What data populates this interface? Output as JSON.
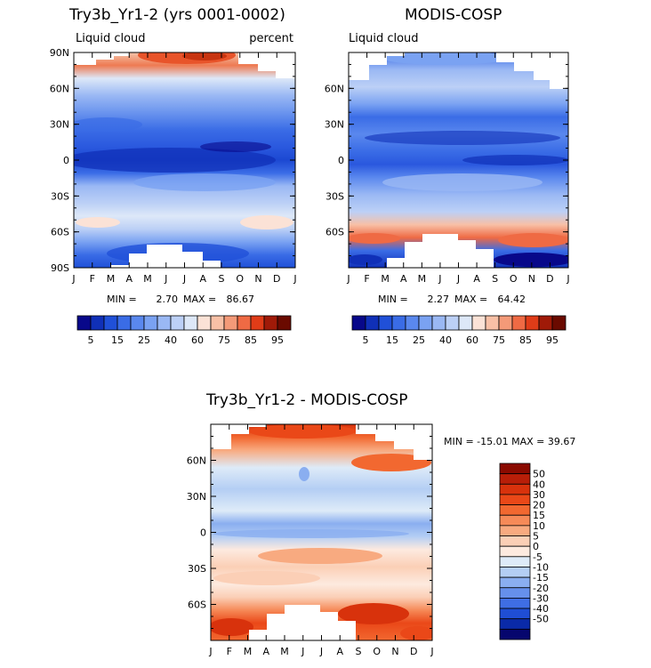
{
  "panel_a": {
    "title": "Try3b_Yr1-2 (yrs 0001-0002)",
    "left_subtitle": "Liquid cloud",
    "right_subtitle": "percent",
    "min_label": "MIN =",
    "min_value": "2.70",
    "max_label": "MAX =",
    "max_value": "86.67"
  },
  "panel_b": {
    "title": "MODIS-COSP",
    "left_subtitle": "Liquid cloud",
    "min_label": "MIN =",
    "min_value": "2.27",
    "max_label": "MAX =",
    "max_value": "64.42"
  },
  "panel_c": {
    "title": "Try3b_Yr1-2 - MODIS-COSP",
    "stats": "MIN = -15.01 MAX =  39.67"
  },
  "months": [
    "J",
    "F",
    "M",
    "A",
    "M",
    "J",
    "J",
    "A",
    "S",
    "O",
    "N",
    "D",
    "J"
  ],
  "lat_labels_full": [
    "90N",
    "60N",
    "30N",
    "0",
    "30S",
    "60S",
    "90S"
  ],
  "lat_labels_short": [
    "60N",
    "30N",
    "0",
    "30S",
    "60S"
  ],
  "chart_data": [
    {
      "type": "heatmap",
      "title": "Try3b_Yr1-2 (yrs 0001-0002)",
      "subtitle_left": "Liquid cloud",
      "subtitle_right": "percent",
      "x_categories": [
        "J",
        "F",
        "M",
        "A",
        "M",
        "J",
        "J",
        "A",
        "S",
        "O",
        "N",
        "D",
        "J"
      ],
      "y_range": [
        -90,
        90
      ],
      "min": 2.7,
      "max": 86.67,
      "colorbar_levels": [
        5,
        10,
        15,
        20,
        25,
        30,
        40,
        50,
        60,
        65,
        75,
        80,
        85,
        90,
        95
      ],
      "colorbar_labels": [
        "5",
        "15",
        "25",
        "40",
        "60",
        "75",
        "85",
        "95"
      ],
      "colorbar_colors": [
        "#08088a",
        "#1030b8",
        "#2050d8",
        "#3a6ce6",
        "#5a88ee",
        "#7aa2f2",
        "#9ab8f4",
        "#bcd0f6",
        "#dde8f8",
        "#fbe2d6",
        "#f8c0a6",
        "#f49a78",
        "#ef6a44",
        "#e03c18",
        "#a01a08",
        "#6a0a00"
      ]
    },
    {
      "type": "heatmap",
      "title": "MODIS-COSP",
      "subtitle_left": "Liquid cloud",
      "x_categories": [
        "J",
        "F",
        "M",
        "A",
        "M",
        "J",
        "J",
        "A",
        "S",
        "O",
        "N",
        "D",
        "J"
      ],
      "y_range": [
        -90,
        90
      ],
      "min": 2.27,
      "max": 64.42,
      "colorbar_levels": [
        5,
        10,
        15,
        20,
        25,
        30,
        40,
        50,
        60,
        65,
        75,
        80,
        85,
        90,
        95
      ],
      "colorbar_labels": [
        "5",
        "15",
        "25",
        "40",
        "60",
        "75",
        "85",
        "95"
      ],
      "colorbar_colors": [
        "#08088a",
        "#1030b8",
        "#2050d8",
        "#3a6ce6",
        "#5a88ee",
        "#7aa2f2",
        "#9ab8f4",
        "#bcd0f6",
        "#dde8f8",
        "#fbe2d6",
        "#f8c0a6",
        "#f49a78",
        "#ef6a44",
        "#e03c18",
        "#a01a08",
        "#6a0a00"
      ]
    },
    {
      "type": "heatmap",
      "title": "Try3b_Yr1-2 - MODIS-COSP",
      "x_categories": [
        "J",
        "F",
        "M",
        "A",
        "M",
        "J",
        "J",
        "A",
        "S",
        "O",
        "N",
        "D",
        "J"
      ],
      "y_range": [
        -90,
        90
      ],
      "min": -15.01,
      "max": 39.67,
      "colorbar_labels": [
        "50",
        "40",
        "30",
        "20",
        "15",
        "10",
        "5",
        "0",
        "-5",
        "-10",
        "-15",
        "-20",
        "-30",
        "-40",
        "-50"
      ],
      "colorbar_colors": [
        "#8a0a00",
        "#b81e08",
        "#d8320c",
        "#ea4818",
        "#f26830",
        "#f68a58",
        "#f8aa80",
        "#fbcfb6",
        "#fdeadf",
        "#deebf8",
        "#b4cef4",
        "#8aaef0",
        "#6690ec",
        "#3f6ee4",
        "#1f4ed4",
        "#0a2aa8",
        "#06066e"
      ]
    }
  ]
}
